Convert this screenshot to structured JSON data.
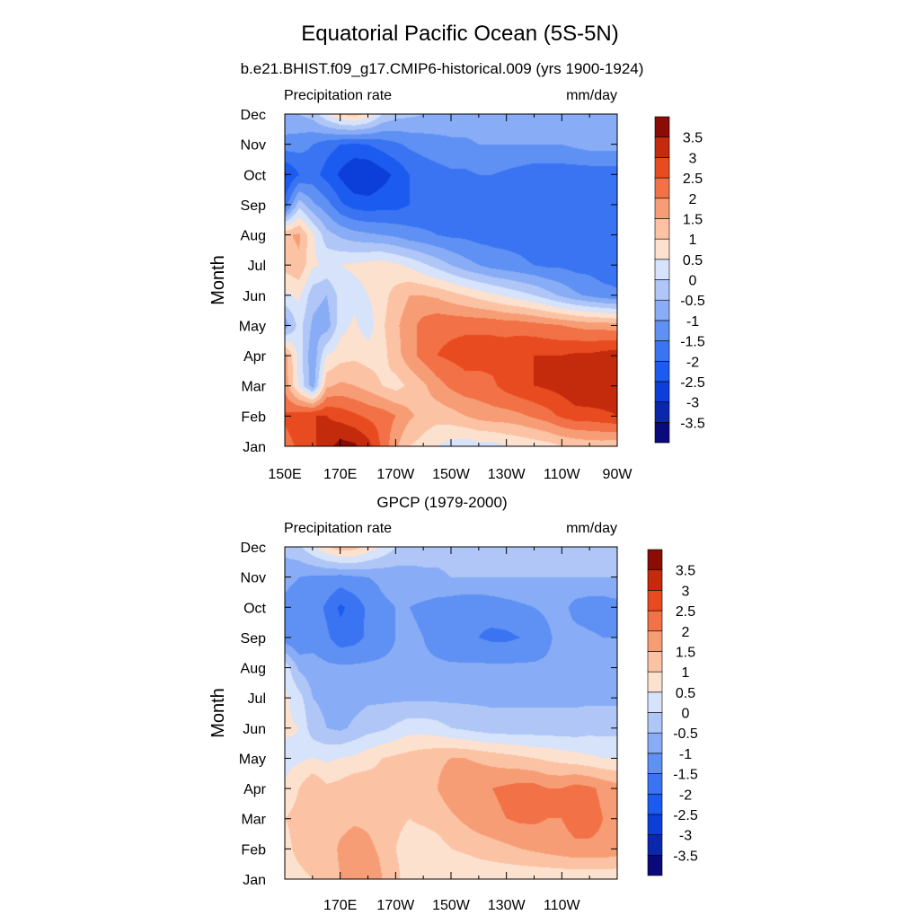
{
  "title": "Equatorial Pacific Ocean (5S-5N)",
  "palette": {
    "levels": [
      -3.5,
      -3,
      -2.5,
      -2,
      -1.5,
      -1,
      -0.5,
      0,
      0.5,
      1,
      1.5,
      2,
      2.5,
      3,
      3.5
    ],
    "level_labels": [
      "-3.5",
      "-3",
      "-2.5",
      "-2",
      "-1.5",
      "-1",
      "-0.5",
      "0",
      "0.5",
      "1",
      "1.5",
      "2",
      "2.5",
      "3",
      "3.5"
    ],
    "colors": [
      "#0a0a7c",
      "#0b28ad",
      "#0c3fd9",
      "#1c5bf0",
      "#3a74f2",
      "#5f90f3",
      "#88acf5",
      "#afc6f7",
      "#d6e3fa",
      "#fde1cf",
      "#fbc3a4",
      "#f79d75",
      "#f27146",
      "#e84b1f",
      "#c42a0c",
      "#8a0c05"
    ]
  },
  "chart_data": [
    {
      "type": "heatmap",
      "title": "b.e21.BHIST.f09_g17.CMIP6-historical.009 (yrs 1900-1924)",
      "left_label": "Precipitation rate",
      "right_label": "mm/day",
      "ylabel": "Month",
      "xlabel": "",
      "x_tick_labels": [
        "150E",
        "170E",
        "170W",
        "150W",
        "130W",
        "110W",
        "90W"
      ],
      "x_ticks": [
        150,
        170,
        190,
        210,
        230,
        250,
        270
      ],
      "xlim": [
        150,
        270
      ],
      "y_tick_labels": [
        "Jan",
        "Feb",
        "Mar",
        "Apr",
        "May",
        "Jun",
        "Jul",
        "Aug",
        "Sep",
        "Oct",
        "Nov",
        "Dec"
      ],
      "longitudes": [
        150,
        155,
        160,
        165,
        170,
        175,
        180,
        185,
        190,
        195,
        200,
        205,
        210,
        215,
        220,
        225,
        230,
        235,
        240,
        245,
        250,
        255,
        260,
        265,
        270
      ],
      "values": [
        [
          2.3,
          2.6,
          2.9,
          3.3,
          3.7,
          3.6,
          3.2,
          2.4,
          1.6,
          1.0,
          0.8,
          0.5,
          0.3,
          0.2,
          0.3,
          0.3,
          0.5,
          0.6,
          0.7,
          0.8,
          1.0,
          1.1,
          1.2,
          1.2,
          1.1
        ],
        [
          2.6,
          2.8,
          3.0,
          3.0,
          2.8,
          2.6,
          2.4,
          2.3,
          2.0,
          1.6,
          1.3,
          1.2,
          1.3,
          1.5,
          1.7,
          1.8,
          1.8,
          1.9,
          2.1,
          2.3,
          2.6,
          2.8,
          2.8,
          2.9,
          3.0
        ],
        [
          1.8,
          0.4,
          -0.8,
          1.4,
          1.6,
          1.5,
          1.3,
          1.0,
          0.8,
          1.1,
          1.4,
          1.8,
          2.1,
          2.3,
          2.3,
          2.4,
          2.7,
          2.9,
          3.0,
          3.1,
          3.2,
          3.4,
          3.5,
          3.4,
          3.3
        ],
        [
          1.7,
          0.3,
          -0.9,
          0.5,
          0.8,
          0.9,
          0.8,
          0.8,
          1.3,
          1.8,
          2.2,
          2.5,
          2.6,
          2.7,
          2.7,
          2.7,
          2.8,
          2.9,
          3.0,
          3.0,
          3.0,
          3.1,
          3.1,
          3.2,
          3.3
        ],
        [
          -0.8,
          0.2,
          -0.6,
          -0.8,
          0.3,
          0.6,
          0.2,
          0.9,
          1.4,
          1.8,
          2.2,
          2.4,
          2.4,
          2.4,
          2.4,
          2.4,
          2.3,
          2.3,
          2.2,
          2.1,
          2.0,
          1.9,
          1.8,
          1.8,
          1.7
        ],
        [
          0.4,
          0.6,
          -0.3,
          -0.5,
          0.2,
          0.3,
          0.5,
          0.8,
          1.2,
          1.5,
          1.5,
          1.4,
          1.2,
          1.0,
          0.8,
          0.6,
          0.4,
          0.2,
          0.0,
          -0.3,
          -0.6,
          -0.9,
          -1.1,
          -1.3,
          -1.4
        ],
        [
          1.2,
          1.4,
          0.6,
          0.4,
          0.5,
          0.6,
          0.7,
          0.8,
          0.6,
          0.4,
          0.1,
          -0.2,
          -0.5,
          -0.8,
          -1.0,
          -1.2,
          -1.3,
          -1.4,
          -1.5,
          -1.6,
          -1.6,
          -1.7,
          -1.7,
          -1.8,
          -1.8
        ],
        [
          1.4,
          1.6,
          0.6,
          -0.3,
          -0.6,
          -0.8,
          -0.9,
          -1.0,
          -1.1,
          -1.3,
          -1.4,
          -1.5,
          -1.6,
          -1.6,
          -1.7,
          -1.7,
          -1.7,
          -1.7,
          -1.8,
          -1.8,
          -1.8,
          -1.8,
          -1.8,
          -1.8,
          -1.8
        ],
        [
          -1.8,
          -0.2,
          -0.9,
          -1.3,
          -1.9,
          -2.2,
          -2.3,
          -2.2,
          -2.2,
          -2.0,
          -1.9,
          -1.8,
          -1.7,
          -1.7,
          -1.6,
          -1.6,
          -1.5,
          -1.7,
          -1.8,
          -1.9,
          -1.9,
          -1.9,
          -1.9,
          -1.9,
          -1.9
        ],
        [
          -2.6,
          -2.0,
          -1.8,
          -2.2,
          -2.6,
          -3.0,
          -3.0,
          -2.7,
          -2.4,
          -2.0,
          -1.8,
          -1.7,
          -1.6,
          -1.6,
          -1.5,
          -1.5,
          -1.6,
          -1.7,
          -1.8,
          -1.8,
          -1.8,
          -1.8,
          -1.8,
          -1.8,
          -1.8
        ],
        [
          -1.2,
          -1.3,
          -1.5,
          -1.8,
          -2.0,
          -2.1,
          -2.0,
          -1.8,
          -1.6,
          -1.4,
          -1.3,
          -1.2,
          -1.1,
          -1.1,
          -1.0,
          -1.0,
          -1.0,
          -1.0,
          -1.0,
          -1.0,
          -1.0,
          -0.9,
          -0.8,
          -0.8,
          -0.8
        ],
        [
          -0.6,
          -0.5,
          -0.3,
          0.4,
          1.0,
          1.2,
          0.8,
          0.0,
          -0.3,
          -0.4,
          -0.5,
          -0.6,
          -0.7,
          -0.7,
          -0.7,
          -0.7,
          -0.7,
          -0.7,
          -0.7,
          -0.7,
          -0.7,
          -0.7,
          -0.7,
          -0.7,
          -0.6
        ]
      ]
    },
    {
      "type": "heatmap",
      "title": "GPCP (1979-2000)",
      "left_label": "Precipitation rate",
      "right_label": "mm/day",
      "ylabel": "Month",
      "xlabel": "",
      "x_tick_labels": [
        "170E",
        "170W",
        "150W",
        "130W",
        "110W"
      ],
      "x_ticks": [
        170,
        190,
        210,
        230,
        250
      ],
      "xlim": [
        150,
        270
      ],
      "y_tick_labels": [
        "Jan",
        "Feb",
        "Mar",
        "Apr",
        "May",
        "Jun",
        "Jul",
        "Aug",
        "Sep",
        "Oct",
        "Nov",
        "Dec"
      ],
      "longitudes": [
        150,
        155,
        160,
        165,
        170,
        175,
        180,
        185,
        190,
        195,
        200,
        205,
        210,
        215,
        220,
        225,
        230,
        235,
        240,
        245,
        250,
        255,
        260,
        265,
        270
      ],
      "values": [
        [
          0.7,
          0.8,
          1.0,
          1.2,
          1.5,
          1.7,
          2.0,
          1.5,
          1.1,
          0.8,
          0.6,
          0.5,
          0.5,
          0.5,
          0.6,
          0.6,
          0.6,
          0.6,
          0.6,
          0.6,
          0.6,
          0.6,
          0.6,
          0.6,
          0.6
        ],
        [
          0.8,
          1.2,
          1.5,
          1.2,
          1.6,
          1.8,
          1.6,
          1.4,
          1.0,
          0.8,
          0.7,
          0.8,
          1.0,
          1.1,
          1.2,
          1.3,
          1.4,
          1.5,
          1.6,
          1.7,
          1.8,
          1.9,
          1.9,
          1.9,
          1.8
        ],
        [
          1.0,
          1.2,
          1.4,
          1.2,
          1.3,
          1.4,
          1.4,
          1.3,
          1.1,
          1.0,
          1.1,
          1.2,
          1.4,
          1.6,
          1.8,
          1.9,
          2.0,
          2.1,
          2.1,
          2.0,
          2.0,
          2.2,
          2.2,
          2.0,
          1.8
        ],
        [
          0.6,
          1.0,
          1.5,
          1.1,
          1.2,
          1.4,
          1.3,
          1.2,
          1.0,
          1.1,
          1.2,
          1.5,
          1.8,
          2.0,
          2.0,
          2.0,
          2.1,
          2.2,
          2.2,
          2.0,
          2.0,
          2.2,
          2.1,
          1.9,
          1.7
        ],
        [
          0.3,
          0.4,
          0.5,
          0.4,
          0.5,
          0.6,
          0.8,
          1.0,
          1.1,
          1.2,
          1.3,
          1.4,
          1.5,
          1.5,
          1.4,
          1.3,
          1.2,
          1.1,
          1.0,
          0.9,
          0.8,
          0.7,
          0.6,
          0.5,
          0.5
        ],
        [
          0.6,
          0.5,
          -0.3,
          -0.5,
          -0.6,
          -0.4,
          -0.2,
          -0.1,
          0.1,
          0.3,
          0.3,
          0.2,
          0.0,
          -0.1,
          -0.2,
          -0.3,
          -0.3,
          -0.3,
          -0.3,
          -0.3,
          -0.3,
          -0.3,
          -0.2,
          -0.2,
          -0.2
        ],
        [
          0.6,
          0.2,
          -0.5,
          -0.6,
          -0.7,
          -0.7,
          -0.6,
          -0.6,
          -0.6,
          -0.6,
          -0.6,
          -0.6,
          -0.6,
          -0.6,
          -0.6,
          -0.6,
          -0.6,
          -0.6,
          -0.6,
          -0.6,
          -0.6,
          -0.6,
          -0.6,
          -0.6,
          -0.6
        ],
        [
          0.3,
          -0.6,
          -0.8,
          -0.9,
          -0.9,
          -0.9,
          -0.9,
          -0.9,
          -0.9,
          -0.9,
          -0.9,
          -0.9,
          -0.9,
          -0.9,
          -0.9,
          -0.9,
          -0.9,
          -0.9,
          -0.9,
          -0.9,
          -0.9,
          -0.9,
          -1.0,
          -1.0,
          -1.0
        ],
        [
          -1.3,
          -1.5,
          -1.2,
          -1.4,
          -1.8,
          -1.7,
          -1.4,
          -1.2,
          -1.0,
          -0.9,
          -1.0,
          -1.2,
          -1.4,
          -1.5,
          -1.5,
          -1.6,
          -1.6,
          -1.5,
          -1.4,
          -1.1,
          -0.8,
          -0.8,
          -0.9,
          -1.0,
          -1.0
        ],
        [
          -1.1,
          -1.2,
          -1.2,
          -1.6,
          -2.1,
          -1.8,
          -1.4,
          -1.1,
          -1.0,
          -1.0,
          -1.1,
          -1.2,
          -1.3,
          -1.4,
          -1.4,
          -1.3,
          -1.2,
          -1.1,
          -1.0,
          -0.9,
          -0.8,
          -1.2,
          -1.3,
          -1.3,
          -1.2
        ],
        [
          -0.9,
          -1.0,
          -1.1,
          -1.1,
          -1.2,
          -1.1,
          -1.0,
          -0.9,
          -0.8,
          -0.7,
          -0.6,
          -0.6,
          -0.5,
          -0.5,
          -0.5,
          -0.5,
          -0.5,
          -0.5,
          -0.5,
          -0.5,
          -0.5,
          -0.5,
          -0.5,
          -0.5,
          -0.5
        ],
        [
          -0.3,
          -0.1,
          0.4,
          0.9,
          1.3,
          1.2,
          0.8,
          0.4,
          0.0,
          -0.2,
          -0.3,
          -0.3,
          -0.3,
          -0.3,
          -0.3,
          -0.3,
          -0.3,
          -0.3,
          -0.3,
          -0.3,
          -0.3,
          -0.3,
          -0.3,
          -0.3,
          -0.3
        ]
      ]
    }
  ]
}
